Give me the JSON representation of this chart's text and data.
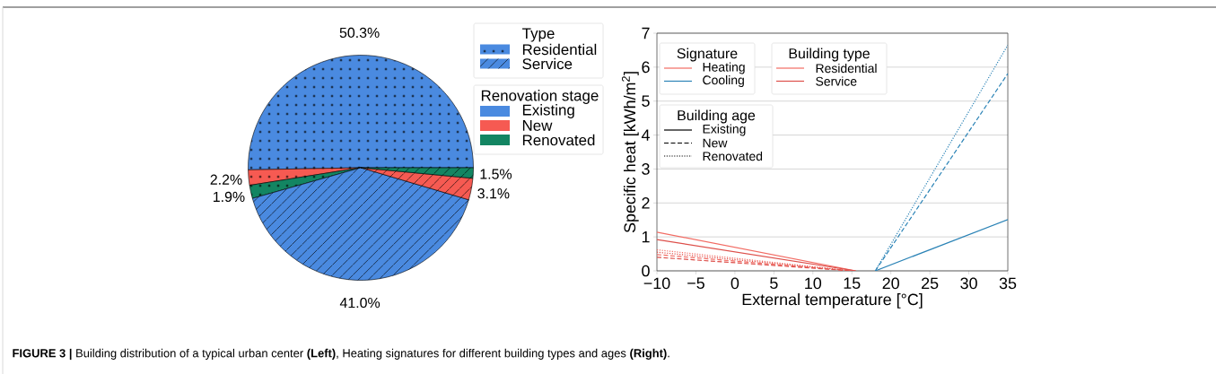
{
  "chart_data": [
    {
      "type": "pie",
      "categories": [
        null,
        null,
        null,
        null,
        null,
        null
      ],
      "values": [
        50.3,
        2.2,
        1.9,
        41.0,
        3.1,
        1.5
      ],
      "colors": [
        "#4a8ae0",
        "#f65a52",
        "#138562",
        "#4a8ae0",
        "#f65a52",
        "#138562"
      ],
      "value_labels": [
        "50.3%",
        "2.2%",
        "1.9%",
        "41.0%",
        "3.1%",
        "1.5%"
      ],
      "annotations": [
        "Type",
        "Residential",
        "Service",
        "Renovation stage",
        "Existing",
        "New",
        "Renovated",
        "**FIGURE 3 |** Building distribution of a typical urban center **(Left)**, Heating signatures for different building types and ages **(Right)**."
      ]
    },
    {
      "type": "line",
      "xlabel": "External temperature [°C]",
      "ylabel": "Specific heat [kWh/m$^{2}$]",
      "xlim": [
        -10,
        35
      ],
      "ylim": [
        0,
        7
      ],
      "xticks": [
        {
          "value": -10,
          "label": "−10"
        },
        {
          "value": -5,
          "label": "−5"
        },
        0,
        5,
        10,
        15,
        20,
        25,
        30,
        35
      ],
      "yticks": [
        0,
        1,
        2,
        3,
        4,
        5,
        6,
        7
      ],
      "grid": "y",
      "legend": "top left",
      "series": [
        {
          "color": "#f26b63",
          "line_style": "solid",
          "x": [
            -10,
            15.5
          ],
          "values": [
            1.14,
            0
          ]
        },
        {
          "color": "#dd4f4a",
          "line_style": "solid",
          "x": [
            -10,
            15.5
          ],
          "values": [
            0.92,
            0
          ]
        },
        {
          "color": "#f26b63",
          "line_style": "dotted",
          "x": [
            -10,
            15
          ],
          "values": [
            0.62,
            0
          ]
        },
        {
          "color": "#dd4f4a",
          "line_style": "dotted",
          "x": [
            -10,
            15
          ],
          "values": [
            0.55,
            0
          ]
        },
        {
          "color": "#f26b63",
          "line_style": "dashed",
          "x": [
            -10,
            15
          ],
          "values": [
            0.48,
            0
          ]
        },
        {
          "color": "#dd4f4a",
          "line_style": "dashed",
          "x": [
            -10,
            15
          ],
          "values": [
            0.4,
            0
          ]
        },
        {
          "color": "#2b83b6",
          "line_style": "solid",
          "x": [
            18,
            35
          ],
          "values": [
            0,
            1.51
          ]
        },
        {
          "color": "#2b83b6",
          "line_style": "dashed",
          "x": [
            18,
            35
          ],
          "values": [
            0,
            5.81
          ]
        },
        {
          "color": "#2b83b6",
          "line_style": "dotted",
          "x": [
            18,
            35
          ],
          "values": [
            0,
            6.65
          ]
        },
        {
          "name": "Heating",
          "color": "#f26b63",
          "line_style": "solid"
        },
        {
          "name": "Cooling",
          "color": "#2b83b6",
          "line_style": "solid"
        },
        {
          "name": "Residential",
          "color": "#f26b63",
          "line_style": "solid"
        },
        {
          "name": "Service",
          "color": "#dd4f4a",
          "line_style": "solid"
        },
        {
          "name": "Existing",
          "color": "#000000",
          "line_style": "solid"
        },
        {
          "name": "New",
          "color": "#000000",
          "line_style": "dashed"
        },
        {
          "name": "Renovated",
          "color": "#000000",
          "line_style": "dotted"
        }
      ],
      "annotations": [
        "Signature",
        "Building type",
        "Building age"
      ]
    }
  ]
}
